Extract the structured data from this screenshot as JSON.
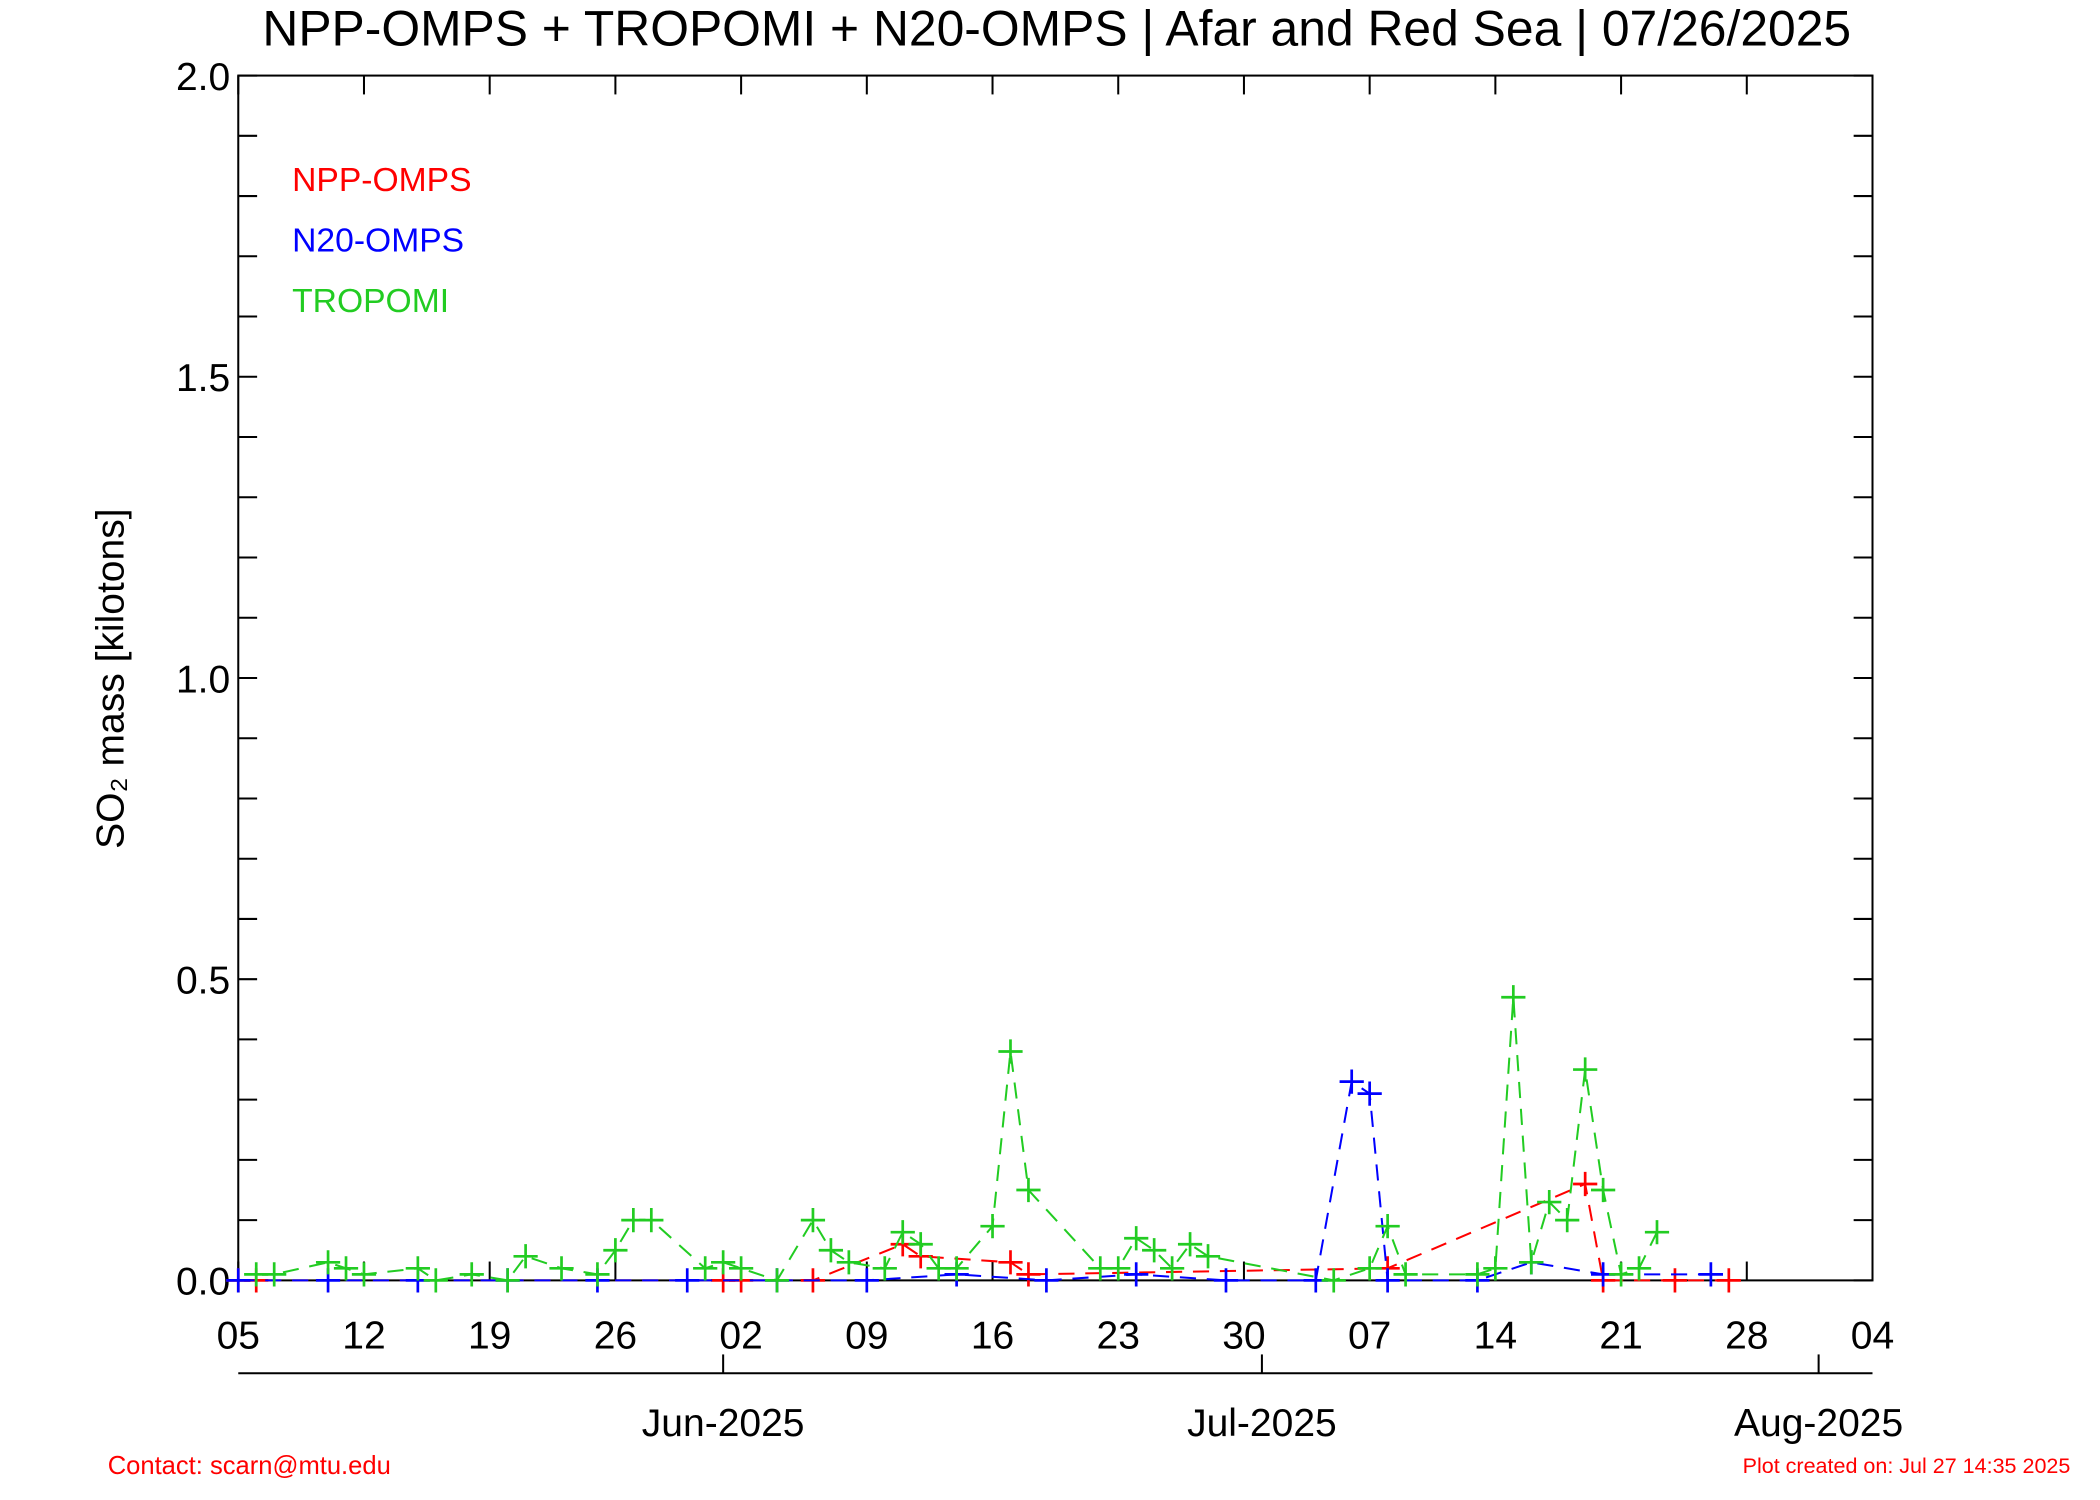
{
  "chart_data": {
    "type": "line",
    "title": "NPP-OMPS + TROPOMI + N20-OMPS | Afar and Red Sea | 07/26/2025",
    "ylabel": "SO₂ mass [kilotons]",
    "xlim": [
      "2025-05-05",
      "2025-08-04"
    ],
    "ylim": [
      0,
      2
    ],
    "yticks": [
      {
        "value": 0,
        "label": "0.0"
      },
      {
        "value": 0.5,
        "label": "0.5"
      },
      {
        "value": 1,
        "label": "1.0"
      },
      {
        "value": 1.5,
        "label": "1.5"
      },
      {
        "value": 2,
        "label": "2.0"
      }
    ],
    "yminor_ticks": [
      0.1,
      0.2,
      0.3,
      0.4,
      0.6,
      0.7,
      0.8,
      0.9,
      1.1,
      1.2,
      1.3,
      1.4,
      1.6,
      1.7,
      1.8,
      1.9
    ],
    "xticks": [
      {
        "value": "2025-05-05",
        "label": "05"
      },
      {
        "value": "2025-05-12",
        "label": "12"
      },
      {
        "value": "2025-05-19",
        "label": "19"
      },
      {
        "value": "2025-05-26",
        "label": "26"
      },
      {
        "value": "2025-06-02",
        "label": "02"
      },
      {
        "value": "2025-06-09",
        "label": "09"
      },
      {
        "value": "2025-06-16",
        "label": "16"
      },
      {
        "value": "2025-06-23",
        "label": "23"
      },
      {
        "value": "2025-06-30",
        "label": "30"
      },
      {
        "value": "2025-07-07",
        "label": "07"
      },
      {
        "value": "2025-07-14",
        "label": "14"
      },
      {
        "value": "2025-07-21",
        "label": "21"
      },
      {
        "value": "2025-07-28",
        "label": "28"
      },
      {
        "value": "2025-08-04",
        "label": "04"
      }
    ],
    "month_ticks": [
      {
        "value": "2025-06-01",
        "label": "Jun-2025"
      },
      {
        "value": "2025-07-01",
        "label": "Jul-2025"
      },
      {
        "value": "2025-08-01",
        "label": "Aug-2025"
      }
    ],
    "series": [
      {
        "name": "NPP-OMPS",
        "color": "#ff0000",
        "x": [
          "2025-05-05",
          "2025-05-06",
          "2025-06-01",
          "2025-06-02",
          "2025-06-06",
          "2025-06-11",
          "2025-06-12",
          "2025-06-17",
          "2025-06-18",
          "2025-07-08",
          "2025-07-19",
          "2025-07-20",
          "2025-07-24",
          "2025-07-27"
        ],
        "values": [
          0,
          0,
          0,
          0,
          0,
          0.06,
          0.04,
          0.03,
          0.01,
          0.02,
          0.16,
          0,
          0,
          0
        ]
      },
      {
        "name": "N20-OMPS",
        "color": "#0000ff",
        "x": [
          "2025-05-05",
          "2025-05-10",
          "2025-05-15",
          "2025-05-20",
          "2025-05-25",
          "2025-05-30",
          "2025-06-04",
          "2025-06-09",
          "2025-06-14",
          "2025-06-19",
          "2025-06-24",
          "2025-06-29",
          "2025-07-04",
          "2025-07-06",
          "2025-07-07",
          "2025-07-08",
          "2025-07-13",
          "2025-07-16",
          "2025-07-20",
          "2025-07-26"
        ],
        "values": [
          0,
          0,
          0,
          0,
          0,
          0,
          0,
          0,
          0.01,
          0,
          0.01,
          0,
          0,
          0.33,
          0.31,
          0,
          0,
          0.03,
          0.01,
          0.01
        ]
      },
      {
        "name": "TROPOMI",
        "color": "#22cc22",
        "x": [
          "2025-05-06",
          "2025-05-07",
          "2025-05-10",
          "2025-05-11",
          "2025-05-12",
          "2025-05-15",
          "2025-05-16",
          "2025-05-18",
          "2025-05-20",
          "2025-05-21",
          "2025-05-23",
          "2025-05-25",
          "2025-05-26",
          "2025-05-27",
          "2025-05-28",
          "2025-05-31",
          "2025-06-01",
          "2025-06-02",
          "2025-06-04",
          "2025-06-06",
          "2025-06-07",
          "2025-06-08",
          "2025-06-10",
          "2025-06-11",
          "2025-06-12",
          "2025-06-13",
          "2025-06-14",
          "2025-06-16",
          "2025-06-17",
          "2025-06-18",
          "2025-06-22",
          "2025-06-23",
          "2025-06-24",
          "2025-06-25",
          "2025-06-26",
          "2025-06-27",
          "2025-06-28",
          "2025-07-05",
          "2025-07-07",
          "2025-07-08",
          "2025-07-09",
          "2025-07-13",
          "2025-07-14",
          "2025-07-15",
          "2025-07-16",
          "2025-07-17",
          "2025-07-18",
          "2025-07-19",
          "2025-07-20",
          "2025-07-21",
          "2025-07-22",
          "2025-07-23"
        ],
        "values": [
          0.01,
          0.01,
          0.03,
          0.02,
          0.01,
          0.02,
          0,
          0.01,
          0,
          0.04,
          0.02,
          0.01,
          0.05,
          0.1,
          0.1,
          0.02,
          0.03,
          0.02,
          0,
          0.1,
          0.05,
          0.03,
          0.02,
          0.08,
          0.06,
          0.02,
          0.02,
          0.09,
          0.38,
          0.15,
          0.02,
          0.02,
          0.07,
          0.05,
          0.02,
          0.06,
          0.04,
          0,
          0.02,
          0.09,
          0.01,
          0.01,
          0.02,
          0.47,
          0.03,
          0.13,
          0.1,
          0.35,
          0.15,
          0.01,
          0.02,
          0.08
        ]
      }
    ],
    "annotations": [
      "Contact: scarn@mtu.edu",
      "Plot created on: Jul 27 14:35 2025"
    ]
  }
}
